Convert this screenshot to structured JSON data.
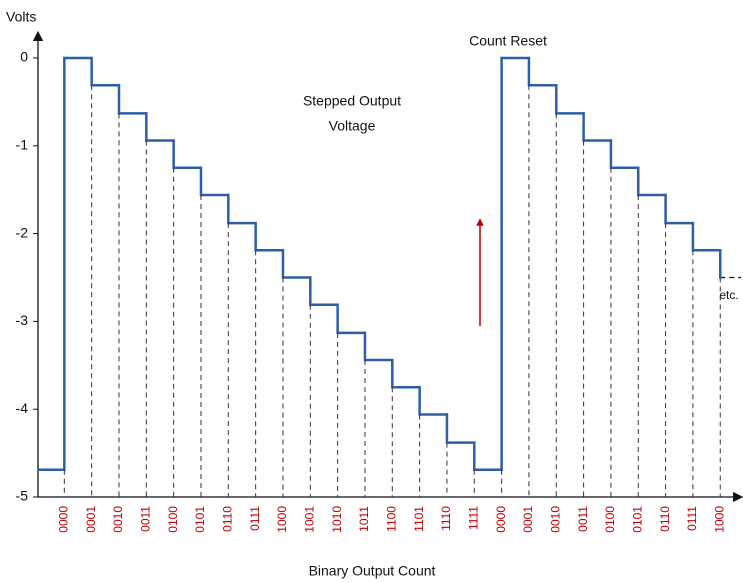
{
  "chart_data": {
    "type": "step",
    "y_label": "Volts",
    "x_label": "Binary Output Count",
    "categories": [
      null,
      "0000",
      "0001",
      "0010",
      "0011",
      "0100",
      "0101",
      "0110",
      "0111",
      "1000",
      "1001",
      "1010",
      "1011",
      "1100",
      "1101",
      "1110",
      "1111",
      "0000",
      "0001",
      "0010",
      "0011",
      "0100",
      "0101",
      "0110",
      "0111",
      "1000"
    ],
    "values": [
      -4.69,
      0,
      -0.31,
      -0.63,
      -0.94,
      -1.25,
      -1.56,
      -1.88,
      -2.19,
      -2.5,
      -2.81,
      -3.13,
      -3.44,
      -3.75,
      -4.06,
      -4.38,
      -4.69,
      0,
      -0.31,
      -0.63,
      -0.94,
      -1.25,
      -1.56,
      -1.88,
      -2.19,
      -2.5
    ],
    "color": "#2f5ea8",
    "category_color": "#c00000",
    "ylim": [
      -5,
      0
    ],
    "yticks": [
      0,
      -1,
      -2,
      -3,
      -4,
      -5
    ],
    "annotations": [
      {
        "lines": [
          "Stepped Output",
          "Voltage"
        ]
      },
      {
        "lines": [
          "Count Reset"
        ]
      },
      {
        "lines": [
          "etc."
        ]
      }
    ]
  }
}
